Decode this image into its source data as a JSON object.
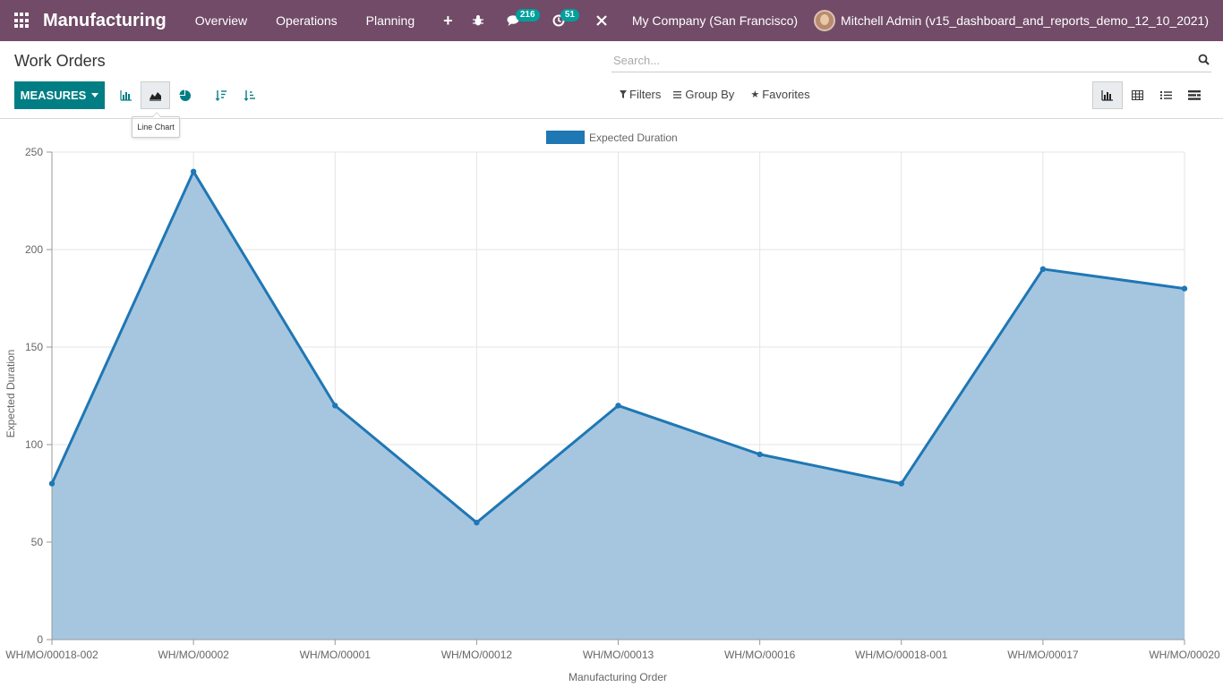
{
  "navbar": {
    "app_name": "Manufacturing",
    "menu": [
      "Overview",
      "Operations",
      "Planning"
    ],
    "plus": "+",
    "messages_badge": "216",
    "activities_badge": "51",
    "company": "My Company (San Francisco)",
    "user": "Mitchell Admin (v15_dashboard_and_reports_demo_12_10_2021)"
  },
  "control": {
    "title": "Work Orders",
    "search_placeholder": "Search...",
    "measures_label": "MEASURES",
    "tooltip": "Line Chart",
    "filters": "Filters",
    "group_by": "Group By",
    "favorites": "Favorites"
  },
  "colors": {
    "brand": "#714b67",
    "accent": "#017e84",
    "series": "#1f77b4",
    "area": "#a6c6e0"
  },
  "chart_data": {
    "type": "area",
    "categories": [
      "WH/MO/00018-002",
      "WH/MO/00002",
      "WH/MO/00001",
      "WH/MO/00012",
      "WH/MO/00013",
      "WH/MO/00016",
      "WH/MO/00018-001",
      "WH/MO/00017",
      "WH/MO/00020"
    ],
    "series": [
      {
        "name": "Expected Duration",
        "values": [
          80,
          240,
          120,
          60,
          120,
          95,
          80,
          190,
          180
        ]
      }
    ],
    "xlabel": "Manufacturing Order",
    "ylabel": "Expected Duration",
    "ylim": [
      0,
      250
    ],
    "yticks": [
      0,
      50,
      100,
      150,
      200,
      250
    ],
    "grid": true,
    "legend": "top-center"
  }
}
